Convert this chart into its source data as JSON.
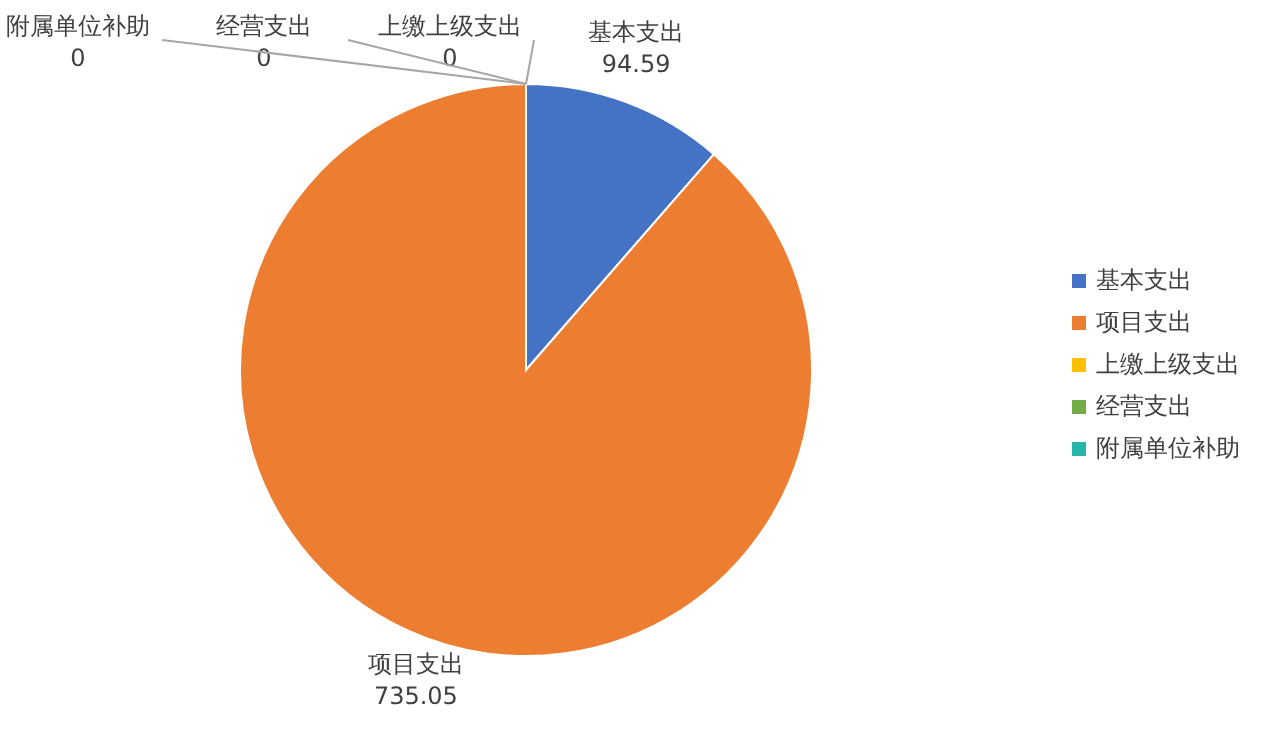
{
  "chart_data": {
    "type": "pie",
    "categories": [
      "基本支出",
      "项目支出",
      "上缴上级支出",
      "经营支出",
      "附属单位补助"
    ],
    "values": [
      94.59,
      735.05,
      0,
      0,
      0
    ],
    "colors": [
      "#4472c4",
      "#ed7d31",
      "#ffc000",
      "#70ad47",
      "#26b5a8"
    ],
    "value_labels": [
      "94.59",
      "735.05",
      "0",
      "0",
      "0"
    ],
    "legend": "right"
  }
}
